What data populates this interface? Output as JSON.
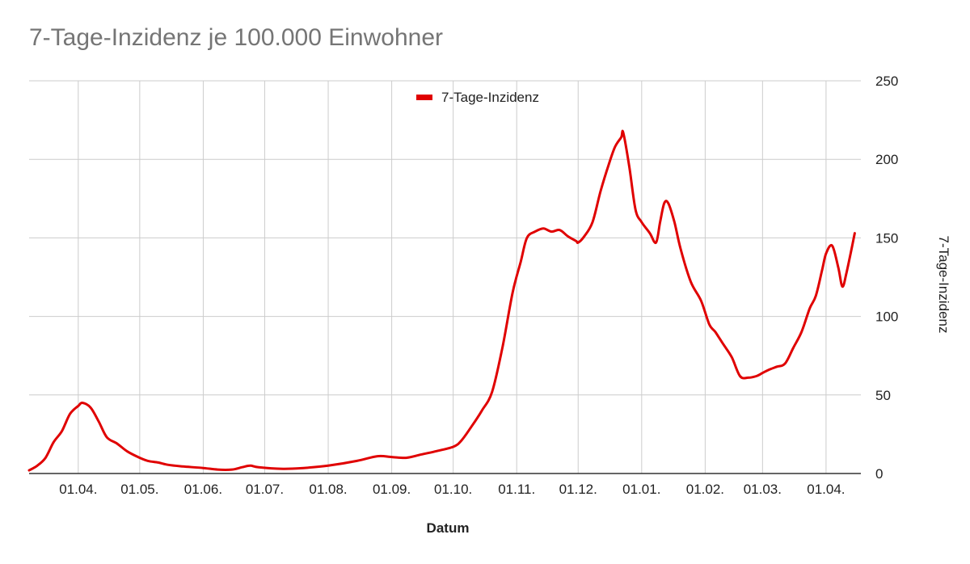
{
  "chart_data": {
    "type": "line",
    "title": "7-Tage-Inzidenz je 100.000 Einwohner",
    "xlabel": "Datum",
    "ylabel": "7-Tage-Inzidenz",
    "y_axis_side": "right",
    "ylim": [
      0,
      250
    ],
    "yticks": [
      0,
      50,
      100,
      150,
      200,
      250
    ],
    "xlim": [
      "2020-03-08",
      "2021-04-18"
    ],
    "xticks": [
      {
        "date": "2020-04-01",
        "label": "01.04."
      },
      {
        "date": "2020-05-01",
        "label": "01.05."
      },
      {
        "date": "2020-06-01",
        "label": "01.06."
      },
      {
        "date": "2020-07-01",
        "label": "01.07."
      },
      {
        "date": "2020-08-01",
        "label": "01.08."
      },
      {
        "date": "2020-09-01",
        "label": "01.09."
      },
      {
        "date": "2020-10-01",
        "label": "01.10."
      },
      {
        "date": "2020-11-01",
        "label": "01.11."
      },
      {
        "date": "2020-12-01",
        "label": "01.12."
      },
      {
        "date": "2021-01-01",
        "label": "01.01."
      },
      {
        "date": "2021-02-01",
        "label": "01.02."
      },
      {
        "date": "2021-03-01",
        "label": "01.03."
      },
      {
        "date": "2021-04-01",
        "label": "01.04."
      }
    ],
    "grid": true,
    "legend_position": "top",
    "series": [
      {
        "name": "7-Tage-Inzidenz",
        "color": "#e00000",
        "points": [
          [
            "2020-03-08",
            2
          ],
          [
            "2020-03-12",
            5
          ],
          [
            "2020-03-16",
            10
          ],
          [
            "2020-03-20",
            20
          ],
          [
            "2020-03-24",
            27
          ],
          [
            "2020-03-28",
            38
          ],
          [
            "2020-04-01",
            43
          ],
          [
            "2020-04-03",
            45
          ],
          [
            "2020-04-07",
            42
          ],
          [
            "2020-04-11",
            33
          ],
          [
            "2020-04-15",
            23
          ],
          [
            "2020-04-20",
            19
          ],
          [
            "2020-04-25",
            14
          ],
          [
            "2020-05-01",
            10
          ],
          [
            "2020-05-05",
            8
          ],
          [
            "2020-05-10",
            7
          ],
          [
            "2020-05-15",
            5.5
          ],
          [
            "2020-05-22",
            4.5
          ],
          [
            "2020-06-01",
            3.5
          ],
          [
            "2020-06-08",
            2.5
          ],
          [
            "2020-06-15",
            2.5
          ],
          [
            "2020-06-20",
            4
          ],
          [
            "2020-06-24",
            5
          ],
          [
            "2020-06-28",
            4
          ],
          [
            "2020-07-10",
            3
          ],
          [
            "2020-07-20",
            3.5
          ],
          [
            "2020-08-01",
            5
          ],
          [
            "2020-08-15",
            8
          ],
          [
            "2020-08-25",
            11
          ],
          [
            "2020-09-01",
            10.5
          ],
          [
            "2020-09-08",
            10
          ],
          [
            "2020-09-15",
            12
          ],
          [
            "2020-09-22",
            14
          ],
          [
            "2020-10-01",
            17
          ],
          [
            "2020-10-05",
            21
          ],
          [
            "2020-10-10",
            30
          ],
          [
            "2020-10-15",
            40
          ],
          [
            "2020-10-20",
            52
          ],
          [
            "2020-10-25",
            80
          ],
          [
            "2020-10-30",
            115
          ],
          [
            "2020-11-03",
            135
          ],
          [
            "2020-11-06",
            150
          ],
          [
            "2020-11-10",
            154
          ],
          [
            "2020-11-14",
            156
          ],
          [
            "2020-11-18",
            154
          ],
          [
            "2020-11-22",
            155
          ],
          [
            "2020-11-26",
            151
          ],
          [
            "2020-11-30",
            148
          ],
          [
            "2020-12-01",
            147
          ],
          [
            "2020-12-04",
            151
          ],
          [
            "2020-12-08",
            160
          ],
          [
            "2020-12-12",
            180
          ],
          [
            "2020-12-16",
            197
          ],
          [
            "2020-12-19",
            208
          ],
          [
            "2020-12-22",
            214
          ],
          [
            "2020-12-23",
            217
          ],
          [
            "2020-12-26",
            195
          ],
          [
            "2020-12-29",
            168
          ],
          [
            "2021-01-01",
            160
          ],
          [
            "2021-01-05",
            153
          ],
          [
            "2021-01-08",
            147
          ],
          [
            "2021-01-10",
            160
          ],
          [
            "2021-01-12",
            172
          ],
          [
            "2021-01-14",
            172
          ],
          [
            "2021-01-17",
            160
          ],
          [
            "2021-01-20",
            143
          ],
          [
            "2021-01-25",
            122
          ],
          [
            "2021-01-30",
            110
          ],
          [
            "2021-02-03",
            95
          ],
          [
            "2021-02-06",
            90
          ],
          [
            "2021-02-10",
            82
          ],
          [
            "2021-02-14",
            74
          ],
          [
            "2021-02-18",
            62
          ],
          [
            "2021-02-22",
            61
          ],
          [
            "2021-02-26",
            62
          ],
          [
            "2021-03-01",
            64
          ],
          [
            "2021-03-04",
            66
          ],
          [
            "2021-03-08",
            68
          ],
          [
            "2021-03-12",
            70
          ],
          [
            "2021-03-16",
            80
          ],
          [
            "2021-03-20",
            90
          ],
          [
            "2021-03-24",
            105
          ],
          [
            "2021-03-27",
            113
          ],
          [
            "2021-03-30",
            129
          ],
          [
            "2021-04-01",
            140
          ],
          [
            "2021-04-04",
            145
          ],
          [
            "2021-04-07",
            131
          ],
          [
            "2021-04-09",
            119
          ],
          [
            "2021-04-11",
            128
          ],
          [
            "2021-04-13",
            140
          ],
          [
            "2021-04-15",
            153
          ]
        ]
      }
    ]
  }
}
